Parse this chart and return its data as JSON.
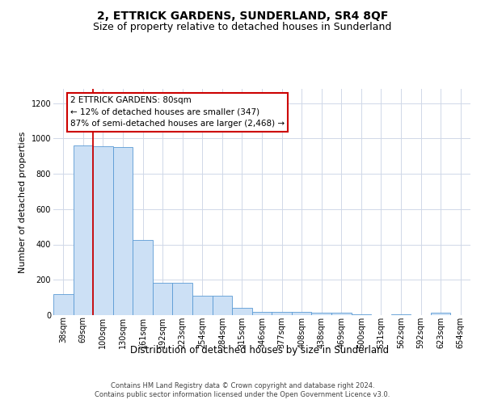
{
  "title": "2, ETTRICK GARDENS, SUNDERLAND, SR4 8QF",
  "subtitle": "Size of property relative to detached houses in Sunderland",
  "xlabel": "Distribution of detached houses by size in Sunderland",
  "ylabel": "Number of detached properties",
  "categories": [
    "38sqm",
    "69sqm",
    "100sqm",
    "130sqm",
    "161sqm",
    "192sqm",
    "223sqm",
    "254sqm",
    "284sqm",
    "315sqm",
    "346sqm",
    "377sqm",
    "408sqm",
    "438sqm",
    "469sqm",
    "500sqm",
    "531sqm",
    "562sqm",
    "592sqm",
    "623sqm",
    "654sqm"
  ],
  "values": [
    120,
    960,
    955,
    950,
    425,
    185,
    185,
    110,
    110,
    40,
    20,
    20,
    20,
    15,
    15,
    5,
    0,
    5,
    0,
    15,
    0
  ],
  "bar_color": "#cce0f5",
  "bar_edge_color": "#5b9bd5",
  "grid_color": "#d0d8e8",
  "background_color": "#ffffff",
  "annotation_line1": "2 ETTRICK GARDENS: 80sqm",
  "annotation_line2": "← 12% of detached houses are smaller (347)",
  "annotation_line3": "87% of semi-detached houses are larger (2,468) →",
  "annotation_box_edge_color": "#cc0000",
  "property_line_x": 1.5,
  "footnote_line1": "Contains HM Land Registry data © Crown copyright and database right 2024.",
  "footnote_line2": "Contains public sector information licensed under the Open Government Licence v3.0.",
  "ylim": [
    0,
    1280
  ],
  "yticks": [
    0,
    200,
    400,
    600,
    800,
    1000,
    1200
  ],
  "title_fontsize": 10,
  "subtitle_fontsize": 9,
  "axis_label_fontsize": 8,
  "tick_fontsize": 7,
  "annotation_fontsize": 7.5,
  "footnote_fontsize": 6
}
